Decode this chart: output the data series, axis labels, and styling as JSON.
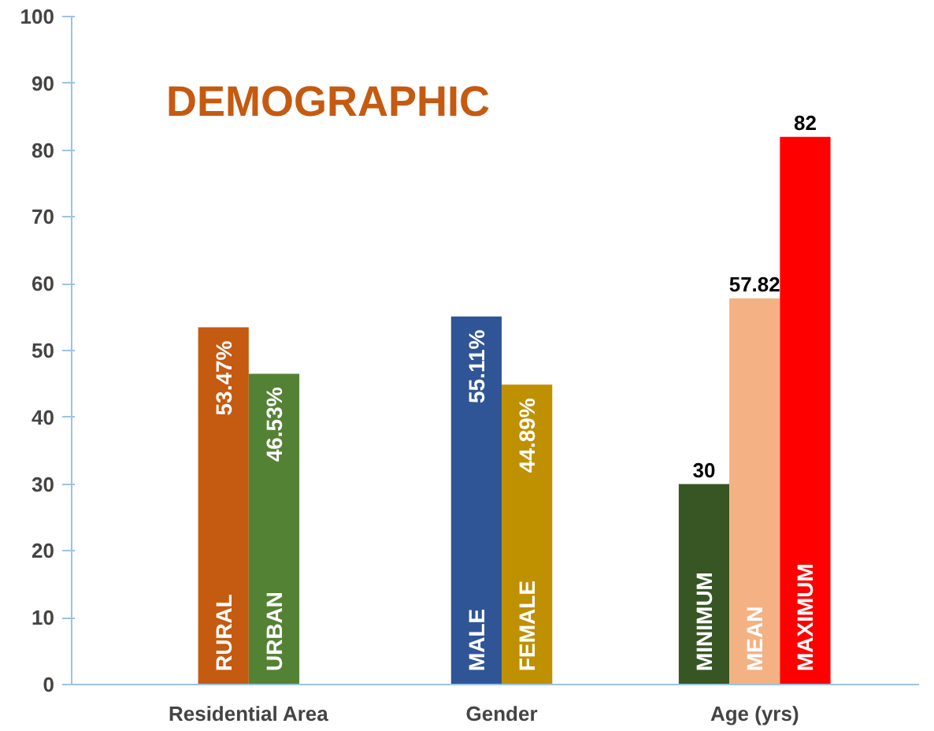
{
  "chart_data": {
    "type": "bar",
    "title": "DEMOGRAPHIC",
    "categories": [
      "Residential Area",
      "Gender",
      "Age (yrs)"
    ],
    "ylim": [
      0,
      100
    ],
    "yticks": [
      0,
      10,
      20,
      30,
      40,
      50,
      60,
      70,
      80,
      90,
      100
    ],
    "grid": false,
    "series": [
      {
        "name": "RURAL",
        "color": "#c55a11",
        "values": [
          53.47,
          null,
          null
        ],
        "value_labels": [
          "53.47%",
          null,
          null
        ]
      },
      {
        "name": "URBAN",
        "color": "#548235",
        "values": [
          46.53,
          null,
          null
        ],
        "value_labels": [
          "46.53%",
          null,
          null
        ]
      },
      {
        "name": "MALE",
        "color": "#2f5597",
        "values": [
          null,
          55.11,
          null
        ],
        "value_labels": [
          null,
          "55.11%",
          null
        ]
      },
      {
        "name": "FEMALE",
        "color": "#bf9000",
        "values": [
          null,
          44.89,
          null
        ],
        "value_labels": [
          null,
          "44.89%",
          null
        ]
      },
      {
        "name": "MINIMUM",
        "color": "#375623",
        "values": [
          null,
          null,
          30
        ],
        "data_labels": true
      },
      {
        "name": "MEAN",
        "color": "#f4b183",
        "values": [
          null,
          null,
          57.82
        ],
        "data_labels": true
      },
      {
        "name": "MAXIMUM",
        "color": "#ff0000",
        "values": [
          null,
          null,
          82
        ],
        "data_labels": true
      }
    ]
  }
}
